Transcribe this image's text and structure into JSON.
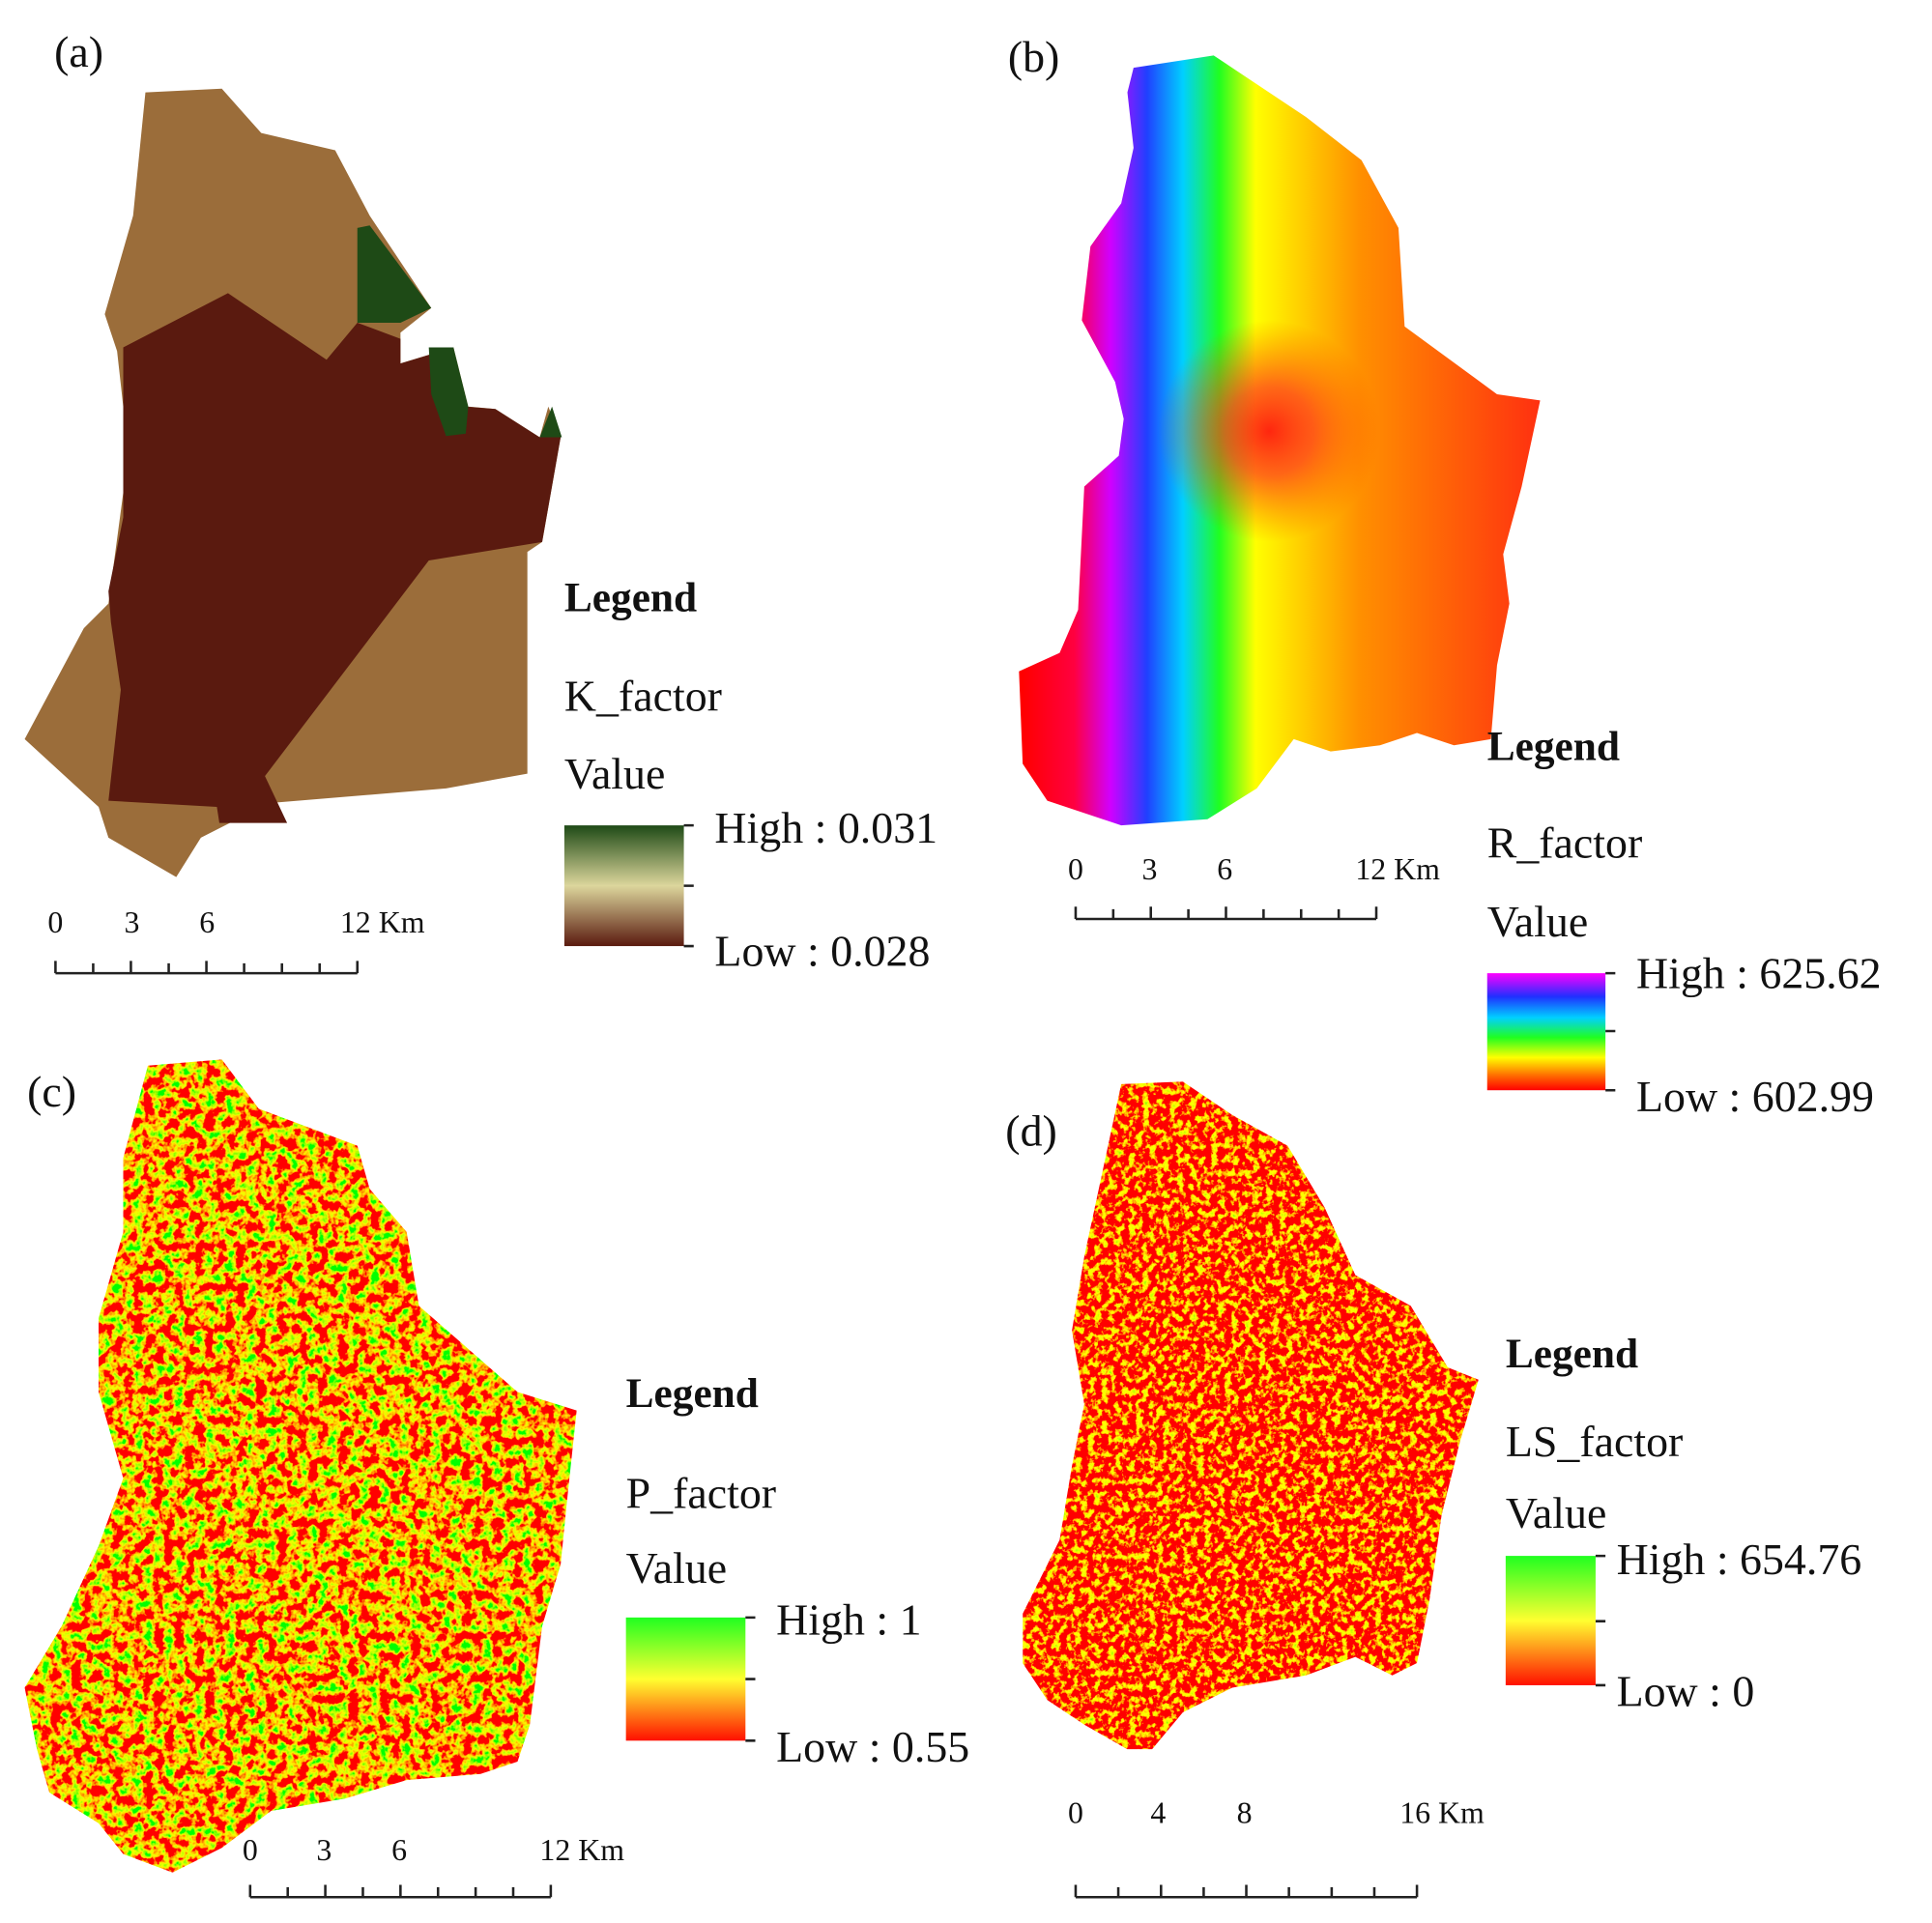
{
  "panels": [
    {
      "label": "(a)",
      "legend": {
        "title": "Legend",
        "layer": "K_factor",
        "field": "Value",
        "high": "High : 0.031",
        "low": "Low : 0.028"
      },
      "scale": [
        "0",
        "3",
        "6",
        "12 Km"
      ]
    },
    {
      "label": "(b)",
      "legend": {
        "title": "Legend",
        "layer": "R_factor",
        "field": "Value",
        "high": "High : 625.62",
        "low": "Low : 602.99"
      },
      "scale": [
        "0",
        "3",
        "6",
        "12 Km"
      ]
    },
    {
      "label": "(c)",
      "legend": {
        "title": "Legend",
        "layer": "P_factor",
        "field": "Value",
        "high": "High : 1",
        "low": "Low : 0.55"
      },
      "scale": [
        "0",
        "3",
        "6",
        "12 Km"
      ]
    },
    {
      "label": "(d)",
      "legend": {
        "title": "Legend",
        "layer": "LS_factor",
        "field": "Value",
        "high": "High : 654.76",
        "low": "Low : 0"
      },
      "scale": [
        "0",
        "4",
        "8",
        "16 Km"
      ]
    }
  ]
}
